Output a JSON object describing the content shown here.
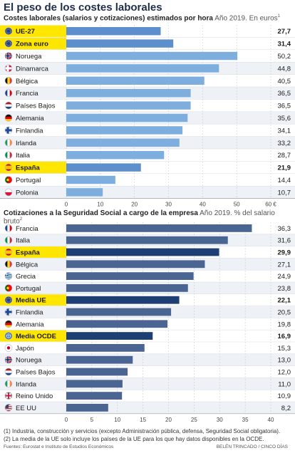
{
  "title": "El peso de los costes laborales",
  "chart_data": [
    {
      "type": "bar",
      "orientation": "horizontal",
      "title": "Costes laborales (salarios y cotizaciones) estimados por hora",
      "subtitle": "Año 2019. En euros",
      "title_note_marker": "1",
      "categories": [
        "UE-27",
        "Zona euro",
        "Noruega",
        "Dinamarca",
        "Bélgica",
        "Francia",
        "Países Bajos",
        "Alemania",
        "Finlandia",
        "Irlanda",
        "Italia",
        "España",
        "Portugal",
        "Polonia"
      ],
      "values": [
        27.7,
        31.4,
        50.2,
        44.8,
        40.5,
        36.5,
        36.5,
        35.6,
        34.1,
        33.2,
        28.7,
        21.9,
        14.4,
        10.7
      ],
      "value_labels": [
        "27,7",
        "31,4",
        "50,2",
        "44,8",
        "40,5",
        "36,5",
        "36,5",
        "35,6",
        "34,1",
        "33,2",
        "28,7",
        "21,9",
        "14,4",
        "10,7"
      ],
      "flags": [
        "eu",
        "eu",
        "no",
        "dk",
        "be",
        "fr",
        "nl",
        "de",
        "fi",
        "ie",
        "it",
        "es",
        "pt",
        "pl"
      ],
      "highlighted": [
        true,
        true,
        false,
        false,
        false,
        false,
        false,
        false,
        false,
        false,
        false,
        true,
        false,
        false
      ],
      "xlim": [
        0,
        60
      ],
      "xticks": [
        0,
        10,
        20,
        30,
        40,
        50,
        60
      ],
      "xtick_labels": [
        "0",
        "10",
        "20",
        "30",
        "40",
        "50",
        "60 €"
      ],
      "bar_color": "#7eaedd",
      "highlight_bar_color": "#5c8fcc",
      "grid": true
    },
    {
      "type": "bar",
      "orientation": "horizontal",
      "title": "Cotizaciones a la Seguridad Social a cargo de la empresa",
      "subtitle": "Año 2019. % del salario bruto",
      "title_note_marker": "2",
      "categories": [
        "Francia",
        "Italia",
        "España",
        "Bélgica",
        "Grecia",
        "Portugal",
        "Media UE",
        "Finlandia",
        "Alemania",
        "Media OCDE",
        "Japón",
        "Noruega",
        "Países Bajos",
        "Irlanda",
        "Reino Unido",
        "EE UU"
      ],
      "values": [
        36.3,
        31.6,
        29.9,
        27.1,
        24.9,
        23.8,
        22.1,
        20.5,
        19.8,
        16.9,
        15.3,
        13.0,
        12.0,
        11.0,
        10.9,
        8.2
      ],
      "value_labels": [
        "36,3",
        "31,6",
        "29,9",
        "27,1",
        "24,9",
        "23,8",
        "22,1",
        "20,5",
        "19,8",
        "16,9",
        "15,3",
        "13,0",
        "12,0",
        "11,0",
        "10,9",
        "8,2"
      ],
      "flags": [
        "fr",
        "it",
        "es",
        "be",
        "gr",
        "pt",
        "eu",
        "fi",
        "de",
        "oecd",
        "jp",
        "no",
        "nl",
        "ie",
        "gb",
        "us"
      ],
      "highlighted": [
        false,
        false,
        true,
        false,
        false,
        false,
        true,
        false,
        false,
        true,
        false,
        false,
        false,
        false,
        false,
        false
      ],
      "xlim": [
        0,
        40
      ],
      "xticks": [
        0,
        5,
        10,
        15,
        20,
        25,
        30,
        35,
        40
      ],
      "xtick_labels": [
        "0",
        "5",
        "10",
        "15",
        "20",
        "25",
        "30",
        "35",
        "40"
      ],
      "bar_color": "#4b6593",
      "highlight_bar_color": "#1d3f73",
      "grid": true
    }
  ],
  "colors": {
    "highlight_row": "#ffe600",
    "row_alt": "#eef1f5"
  },
  "footnotes": [
    "(1) Industria, construcción y servicios (excepto Administración pública, defensa, Seguridad Social obligatoria).",
    "(2) La media de la UE solo incluye los países de la UE para los que hay datos disponibles en la OCDE."
  ],
  "sources": "Fuentes: Eurostat e Instituto de Estudios Económicos",
  "credit": "BELÉN TRINCADO / CINCO DÍAS"
}
